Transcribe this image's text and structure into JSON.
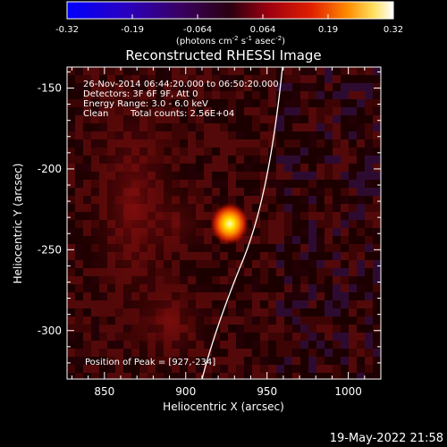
{
  "colorbar": {
    "ticks": [
      "-0.32",
      "-0.19",
      "-0.064",
      "0.064",
      "0.19",
      "0.32"
    ],
    "units": "(photons cm",
    "units_exp1": "-2",
    "units_mid": " s",
    "units_exp2": "-1",
    "units_tail": " asec",
    "units_exp3": "-2",
    "units_close": ")"
  },
  "title": "Reconstructed RHESSI Image",
  "info": {
    "line1": "26-Nov-2014 06:44:20.000 to 06:50:20.000",
    "line2": "Detectors: 3F 6F 9F, Att 0",
    "line3": "Energy Range: 3.0 - 6.0 keV",
    "line4a": "Clean",
    "line4b": "Total counts: 2.56E+04"
  },
  "peak_label": "Position of Peak = [927,-234]",
  "x_axis": {
    "label": "Heliocentric X (arcsec)",
    "range": [
      827,
      1020
    ],
    "ticks": [
      "850",
      "900",
      "950",
      "1000"
    ],
    "tick_values": [
      850,
      900,
      950,
      1000
    ]
  },
  "y_axis": {
    "label": "Heliocentric Y (arcsec)",
    "range": [
      -330,
      -137
    ],
    "ticks": [
      "-150",
      "-200",
      "-250",
      "-300"
    ],
    "tick_values": [
      -150,
      -200,
      -250,
      -300
    ]
  },
  "peak": {
    "x": 927,
    "y": -234
  },
  "timestamp": "19-May-2022 21:58"
}
